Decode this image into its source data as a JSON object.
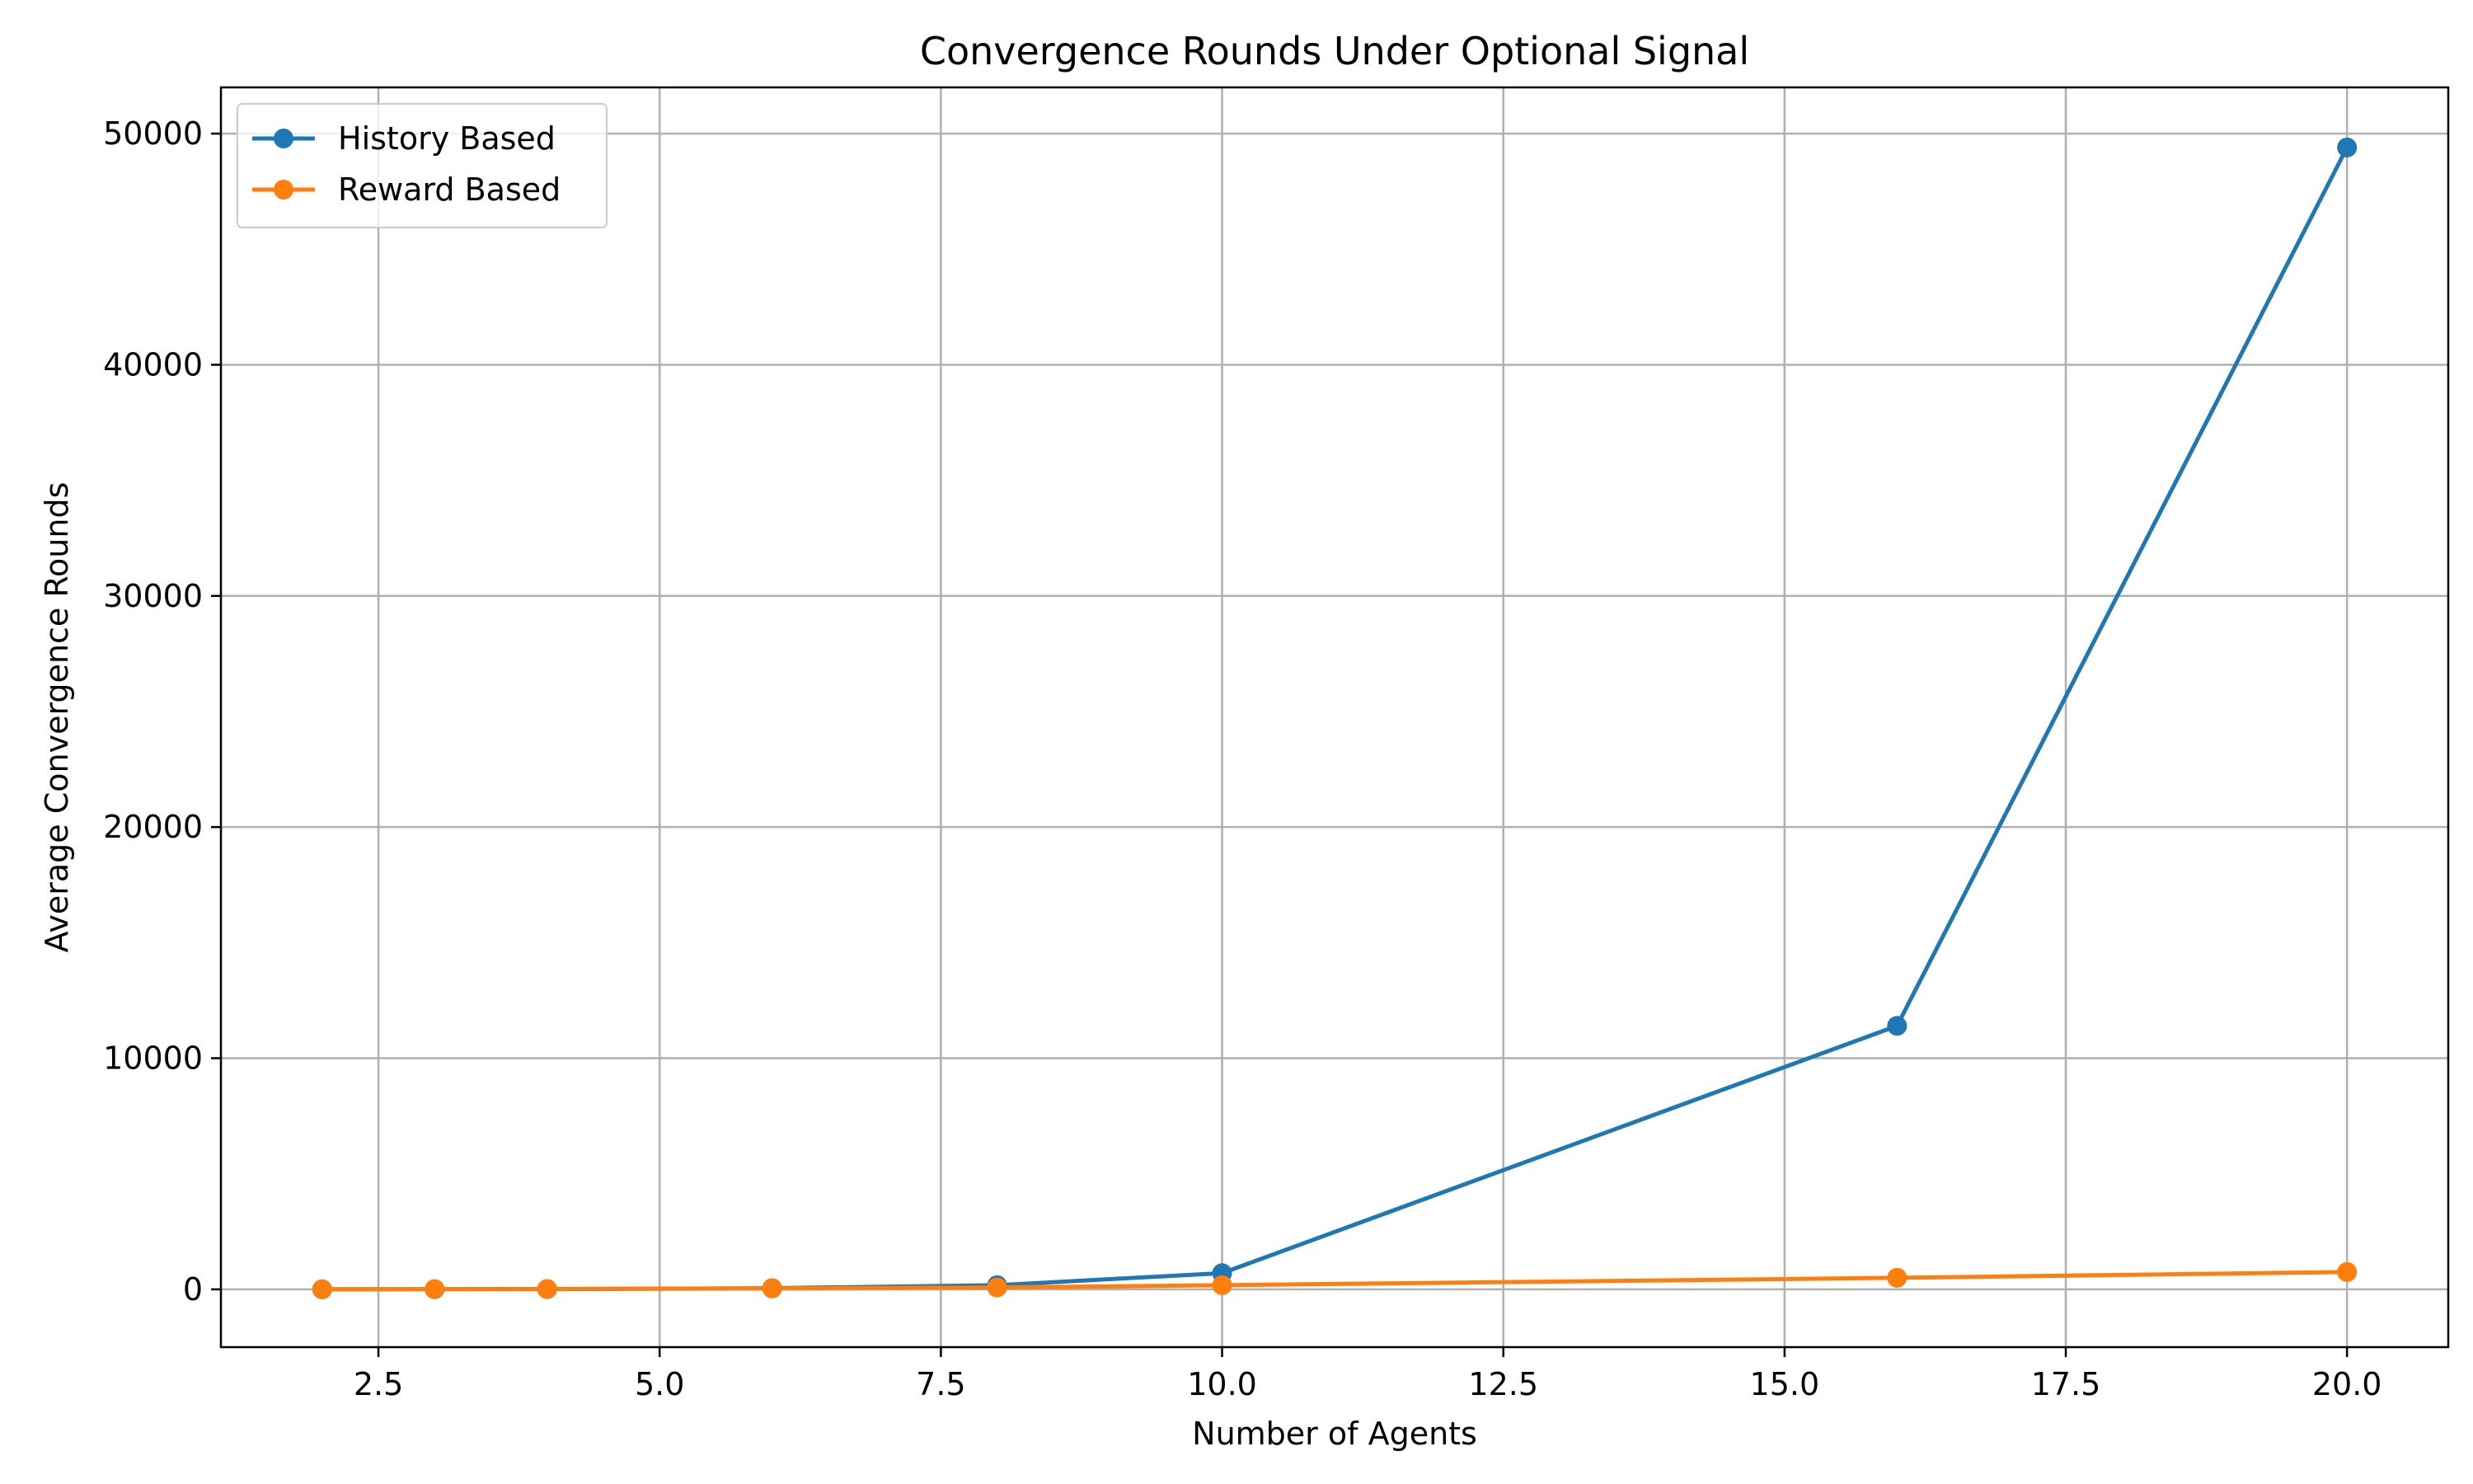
{
  "chart_data": {
    "type": "line",
    "title": "Convergence Rounds Under Optional Signal",
    "xlabel": "Number of Agents",
    "ylabel": "Average Convergence Rounds",
    "xlim": [
      1.1,
      20.9
    ],
    "ylim": [
      -2500,
      52000
    ],
    "xticks": [
      2.5,
      5.0,
      7.5,
      10.0,
      12.5,
      15.0,
      17.5,
      20.0
    ],
    "xtick_labels": [
      "2.5",
      "5.0",
      "7.5",
      "10.0",
      "12.5",
      "15.0",
      "17.5",
      "20.0"
    ],
    "yticks": [
      0,
      10000,
      20000,
      30000,
      40000,
      50000
    ],
    "ytick_labels": [
      "0",
      "10000",
      "20000",
      "30000",
      "40000",
      "50000"
    ],
    "grid": true,
    "legend_position": "top-left",
    "series": [
      {
        "name": "History Based",
        "color": "#1f77b4",
        "marker": "circle",
        "points": [
          {
            "x": 2,
            "y": 2
          },
          {
            "x": 3,
            "y": 5
          },
          {
            "x": 4,
            "y": 10
          },
          {
            "x": 6,
            "y": 50
          },
          {
            "x": 8,
            "y": 180
          },
          {
            "x": 10,
            "y": 700
          },
          {
            "x": 16,
            "y": 11400
          },
          {
            "x": 20,
            "y": 49400
          }
        ]
      },
      {
        "name": "Reward Based",
        "color": "#ff7f0e",
        "marker": "circle",
        "points": [
          {
            "x": 2,
            "y": 5
          },
          {
            "x": 3,
            "y": 10
          },
          {
            "x": 4,
            "y": 15
          },
          {
            "x": 6,
            "y": 40
          },
          {
            "x": 8,
            "y": 80
          },
          {
            "x": 10,
            "y": 180
          },
          {
            "x": 16,
            "y": 500
          },
          {
            "x": 20,
            "y": 750
          }
        ]
      }
    ]
  }
}
